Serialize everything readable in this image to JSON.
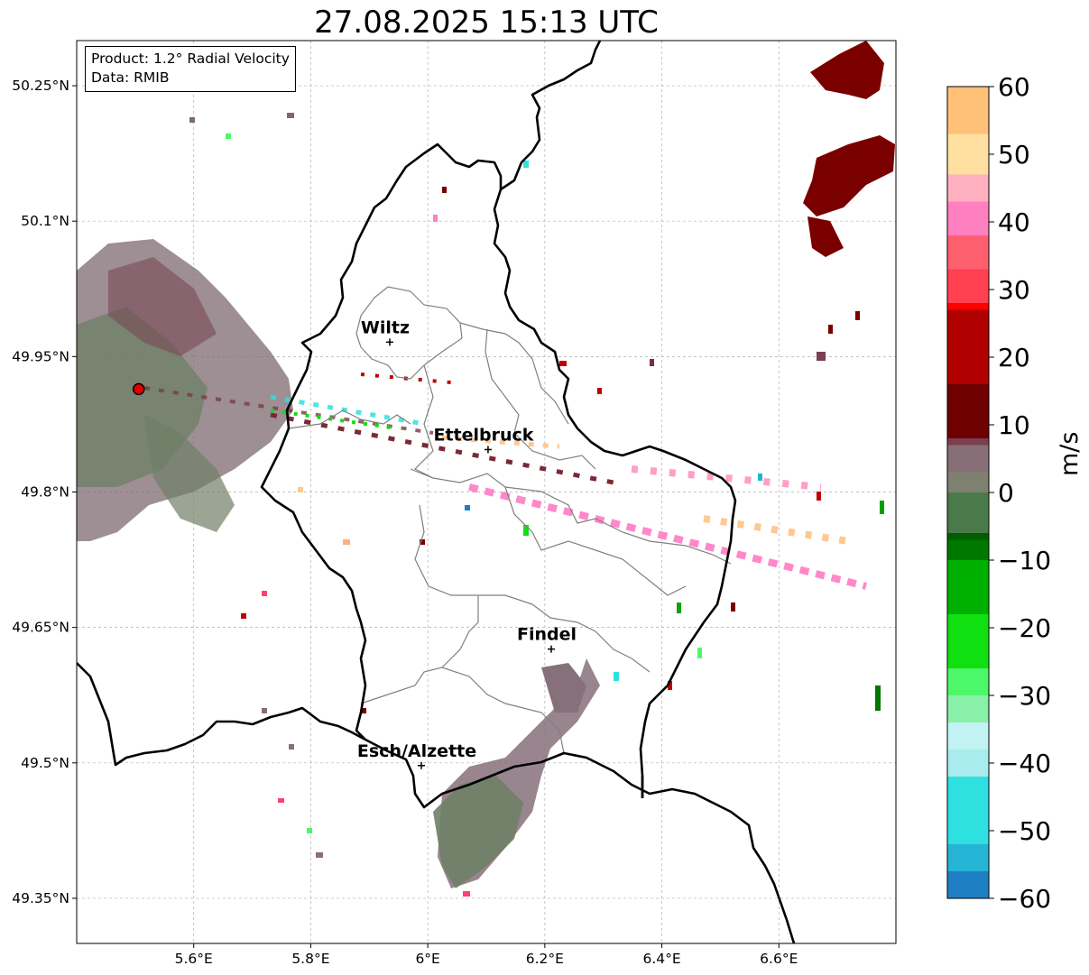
{
  "header": {
    "title": "27.08.2025 15:13 UTC"
  },
  "info_box": {
    "product": "Product: 1.2° Radial Velocity",
    "data_source": "Data: RMIB"
  },
  "map": {
    "lon_range": [
      5.4,
      6.8
    ],
    "lat_range": [
      49.3,
      50.3
    ],
    "lon_ticks": [
      {
        "value": 5.6,
        "label": "5.6°E"
      },
      {
        "value": 5.8,
        "label": "5.8°E"
      },
      {
        "value": 6.0,
        "label": "6°E"
      },
      {
        "value": 6.2,
        "label": "6.2°E"
      },
      {
        "value": 6.4,
        "label": "6.4°E"
      },
      {
        "value": 6.6,
        "label": "6.6°E"
      }
    ],
    "lat_ticks": [
      {
        "value": 50.25,
        "label": "50.25°N"
      },
      {
        "value": 50.1,
        "label": "50.1°N"
      },
      {
        "value": 49.95,
        "label": "49.95°N"
      },
      {
        "value": 49.8,
        "label": "49.8°N"
      },
      {
        "value": 49.65,
        "label": "49.65°N"
      },
      {
        "value": 49.5,
        "label": "49.5°N"
      },
      {
        "value": 49.35,
        "label": "49.35°N"
      }
    ],
    "radar_site": {
      "lon": 5.506,
      "lat": 49.914
    },
    "cities": [
      {
        "name": "Wiltz",
        "lon": 5.935,
        "lat": 49.966
      },
      {
        "name": "Ettelbruck",
        "lon": 6.103,
        "lat": 49.847
      },
      {
        "name": "Findel",
        "lon": 6.211,
        "lat": 49.626
      },
      {
        "name": "Esch/Alzette",
        "lon": 5.989,
        "lat": 49.497
      }
    ]
  },
  "colorbar": {
    "label": "m/s",
    "range": [
      -60,
      60
    ],
    "ticks": [
      {
        "value": 60,
        "label": "60"
      },
      {
        "value": 50,
        "label": "50"
      },
      {
        "value": 40,
        "label": "40"
      },
      {
        "value": 30,
        "label": "30"
      },
      {
        "value": 20,
        "label": "20"
      },
      {
        "value": 10,
        "label": "10"
      },
      {
        "value": 0,
        "label": "0"
      },
      {
        "value": -10,
        "label": "−10"
      },
      {
        "value": -20,
        "label": "−20"
      },
      {
        "value": -30,
        "label": "−30"
      },
      {
        "value": -40,
        "label": "−40"
      },
      {
        "value": -50,
        "label": "−50"
      },
      {
        "value": -60,
        "label": "−60"
      }
    ],
    "stops": [
      {
        "value": -60,
        "color": "#1f7fc4"
      },
      {
        "value": -56,
        "color": "#25b4d4"
      },
      {
        "value": -52,
        "color": "#2ee0e0"
      },
      {
        "value": -42,
        "color": "#a8ecee"
      },
      {
        "value": -38,
        "color": "#c2f2f2"
      },
      {
        "value": -34,
        "color": "#88f0a8"
      },
      {
        "value": -30,
        "color": "#4cf86a"
      },
      {
        "value": -26,
        "color": "#10e010"
      },
      {
        "value": -18,
        "color": "#00b000"
      },
      {
        "value": -10,
        "color": "#007800"
      },
      {
        "value": -7,
        "color": "#005e00"
      },
      {
        "value": -6,
        "color": "#4a7a4a"
      },
      {
        "value": 0,
        "color": "#7e8070"
      },
      {
        "value": 3,
        "color": "#886e76"
      },
      {
        "value": 7,
        "color": "#7a4050"
      },
      {
        "value": 8,
        "color": "#6e0000"
      },
      {
        "value": 16,
        "color": "#b00000"
      },
      {
        "value": 27,
        "color": "#ff0000"
      },
      {
        "value": 28,
        "color": "#ff4050"
      },
      {
        "value": 33,
        "color": "#ff6070"
      },
      {
        "value": 38,
        "color": "#ff80c0"
      },
      {
        "value": 43,
        "color": "#ffb0c0"
      },
      {
        "value": 47,
        "color": "#ffe0a0"
      },
      {
        "value": 53,
        "color": "#ffc078"
      },
      {
        "value": 60,
        "color": "#ffa050"
      }
    ]
  },
  "colors": {
    "border_national": "#000000",
    "border_canton": "#808080",
    "grid": "#b0b0b0",
    "radar_marker": "#e00000"
  }
}
